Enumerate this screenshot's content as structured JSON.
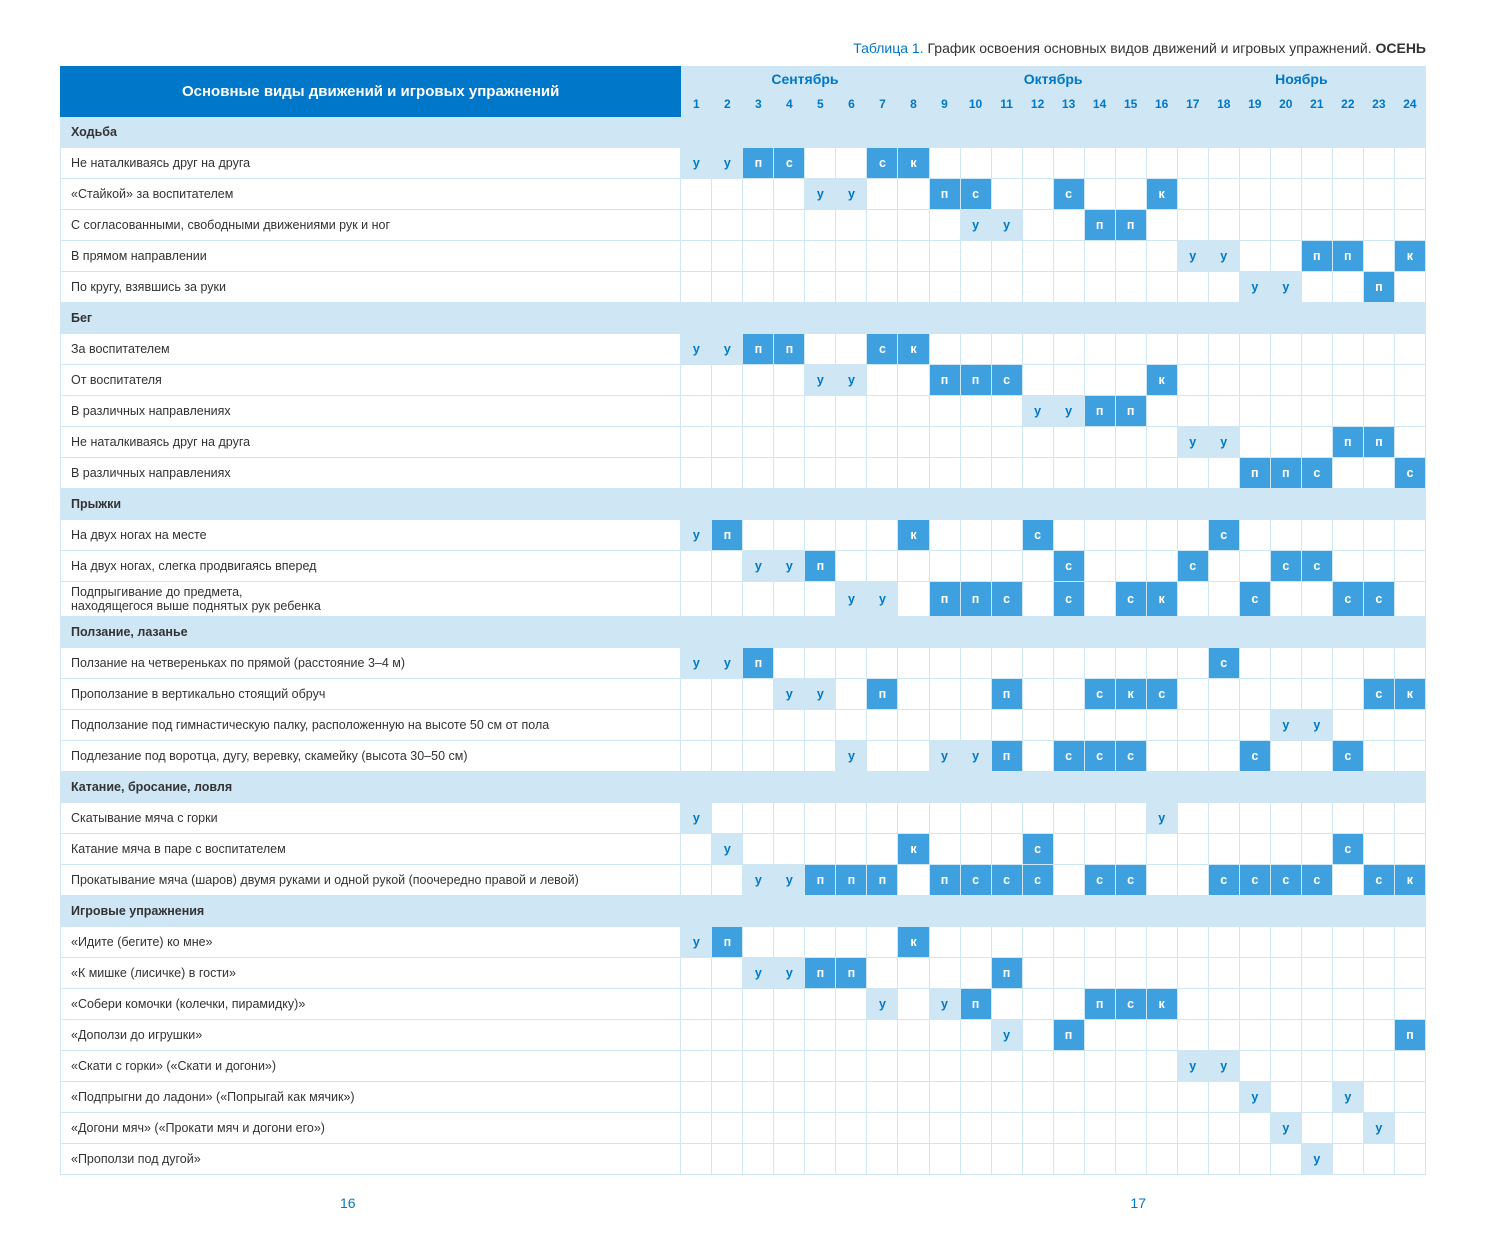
{
  "caption": {
    "table_label": "Таблица 1.",
    "title": "График освоения основных видов движений и игровых упражнений.",
    "season": "ОСЕНЬ"
  },
  "main_header": "Основные виды движений и игровых упражнений",
  "months": [
    {
      "name": "Сентябрь",
      "span": 8
    },
    {
      "name": "Октябрь",
      "span": 8
    },
    {
      "name": "Ноябрь",
      "span": 8
    }
  ],
  "column_numbers": [
    "1",
    "2",
    "3",
    "4",
    "5",
    "6",
    "7",
    "8",
    "9",
    "10",
    "11",
    "12",
    "13",
    "14",
    "15",
    "16",
    "17",
    "18",
    "19",
    "20",
    "21",
    "22",
    "23",
    "24"
  ],
  "rows": [
    {
      "type": "section",
      "label": "Ходьба"
    },
    {
      "type": "data",
      "label": "Не наталкиваясь друг на друга",
      "cells": {
        "1": [
          "у",
          "l"
        ],
        "2": [
          "у",
          "l"
        ],
        "3": [
          "п",
          "d"
        ],
        "4": [
          "с",
          "d"
        ],
        "7": [
          "с",
          "d"
        ],
        "8": [
          "к",
          "d"
        ]
      }
    },
    {
      "type": "data",
      "label": "«Стайкой» за воспитателем",
      "cells": {
        "5": [
          "у",
          "l"
        ],
        "6": [
          "у",
          "l"
        ],
        "9": [
          "п",
          "d"
        ],
        "10": [
          "с",
          "d"
        ],
        "13": [
          "с",
          "d"
        ],
        "16": [
          "к",
          "d"
        ]
      }
    },
    {
      "type": "data",
      "label": "С согласованными, свободными движениями рук и ног",
      "cells": {
        "10": [
          "у",
          "l"
        ],
        "11": [
          "у",
          "l"
        ],
        "14": [
          "п",
          "d"
        ],
        "15": [
          "п",
          "d"
        ]
      }
    },
    {
      "type": "data",
      "label": "В прямом направлении",
      "cells": {
        "17": [
          "у",
          "l"
        ],
        "18": [
          "у",
          "l"
        ],
        "21": [
          "п",
          "d"
        ],
        "22": [
          "п",
          "d"
        ],
        "24": [
          "к",
          "d"
        ]
      }
    },
    {
      "type": "data",
      "label": "По кругу, взявшись за руки",
      "cells": {
        "19": [
          "у",
          "l"
        ],
        "20": [
          "у",
          "l"
        ],
        "23": [
          "п",
          "d"
        ]
      }
    },
    {
      "type": "section",
      "label": "Бег"
    },
    {
      "type": "data",
      "label": "За воспитателем",
      "cells": {
        "1": [
          "у",
          "l"
        ],
        "2": [
          "у",
          "l"
        ],
        "3": [
          "п",
          "d"
        ],
        "4": [
          "п",
          "d"
        ],
        "7": [
          "с",
          "d"
        ],
        "8": [
          "к",
          "d"
        ]
      }
    },
    {
      "type": "data",
      "label": "От воспитателя",
      "cells": {
        "5": [
          "у",
          "l"
        ],
        "6": [
          "у",
          "l"
        ],
        "9": [
          "п",
          "d"
        ],
        "10": [
          "п",
          "d"
        ],
        "11": [
          "с",
          "d"
        ],
        "16": [
          "к",
          "d"
        ]
      }
    },
    {
      "type": "data",
      "label": "В различных направлениях",
      "cells": {
        "12": [
          "у",
          "l"
        ],
        "13": [
          "у",
          "l"
        ],
        "14": [
          "п",
          "d"
        ],
        "15": [
          "п",
          "d"
        ]
      }
    },
    {
      "type": "data",
      "label": "Не наталкиваясь друг на друга",
      "cells": {
        "17": [
          "у",
          "l"
        ],
        "18": [
          "у",
          "l"
        ],
        "22": [
          "п",
          "d"
        ],
        "23": [
          "п",
          "d"
        ]
      }
    },
    {
      "type": "data",
      "label": "В различных направлениях",
      "cells": {
        "19": [
          "п",
          "d"
        ],
        "20": [
          "п",
          "d"
        ],
        "21": [
          "с",
          "d"
        ],
        "24": [
          "с",
          "d"
        ]
      }
    },
    {
      "type": "section",
      "label": "Прыжки"
    },
    {
      "type": "data",
      "label": "На двух ногах на месте",
      "cells": {
        "1": [
          "у",
          "l"
        ],
        "2": [
          "п",
          "d"
        ],
        "8": [
          "к",
          "d"
        ],
        "12": [
          "с",
          "d"
        ],
        "18": [
          "с",
          "d"
        ]
      }
    },
    {
      "type": "data",
      "label": "На двух ногах, слегка продвигаясь вперед",
      "cells": {
        "3": [
          "у",
          "l"
        ],
        "4": [
          "у",
          "l"
        ],
        "5": [
          "п",
          "d"
        ],
        "13": [
          "с",
          "d"
        ],
        "17": [
          "с",
          "d"
        ],
        "20": [
          "с",
          "d"
        ],
        "21": [
          "с",
          "d"
        ]
      }
    },
    {
      "type": "data",
      "label": "Подпрыгивание до предмета,\nнаходящегося выше поднятых рук ребенка",
      "cells": {
        "6": [
          "у",
          "l"
        ],
        "7": [
          "у",
          "l"
        ],
        "9": [
          "п",
          "d"
        ],
        "10": [
          "п",
          "d"
        ],
        "11": [
          "с",
          "d"
        ],
        "13": [
          "с",
          "d"
        ],
        "15": [
          "с",
          "d"
        ],
        "16": [
          "к",
          "d"
        ],
        "19": [
          "с",
          "d"
        ],
        "22": [
          "с",
          "d"
        ],
        "23": [
          "с",
          "d"
        ]
      }
    },
    {
      "type": "section",
      "label": "Ползание, лазанье"
    },
    {
      "type": "data",
      "label": "Ползание на четвереньках по прямой (расстояние 3–4 м)",
      "cells": {
        "1": [
          "у",
          "l"
        ],
        "2": [
          "у",
          "l"
        ],
        "3": [
          "п",
          "d"
        ],
        "18": [
          "с",
          "d"
        ]
      }
    },
    {
      "type": "data",
      "label": "Проползание в вертикально стоящий обруч",
      "cells": {
        "4": [
          "у",
          "l"
        ],
        "5": [
          "у",
          "l"
        ],
        "7": [
          "п",
          "d"
        ],
        "11": [
          "п",
          "d"
        ],
        "14": [
          "с",
          "d"
        ],
        "15": [
          "к",
          "d"
        ],
        "16": [
          "с",
          "d"
        ],
        "23": [
          "с",
          "d"
        ],
        "24": [
          "к",
          "d"
        ]
      }
    },
    {
      "type": "data",
      "label": "Подползание под гимнастическую палку, расположенную на высоте 50 см от пола",
      "cells": {
        "20": [
          "у",
          "l"
        ],
        "21": [
          "у",
          "l"
        ]
      }
    },
    {
      "type": "data",
      "label": "Подлезание под воротца, дугу, веревку, скамейку (высота 30–50 см)",
      "cells": {
        "6": [
          "у",
          "l"
        ],
        "9": [
          "у",
          "l"
        ],
        "10": [
          "у",
          "l"
        ],
        "11": [
          "п",
          "d"
        ],
        "13": [
          "с",
          "d"
        ],
        "14": [
          "с",
          "d"
        ],
        "15": [
          "с",
          "d"
        ],
        "19": [
          "с",
          "d"
        ],
        "22": [
          "с",
          "d"
        ]
      }
    },
    {
      "type": "section",
      "label": "Катание, бросание, ловля"
    },
    {
      "type": "data",
      "label": "Скатывание мяча с горки",
      "cells": {
        "1": [
          "у",
          "l"
        ],
        "16": [
          "у",
          "l"
        ]
      }
    },
    {
      "type": "data",
      "label": "Катание мяча в паре с воспитателем",
      "cells": {
        "2": [
          "у",
          "l"
        ],
        "8": [
          "к",
          "d"
        ],
        "12": [
          "с",
          "d"
        ],
        "22": [
          "с",
          "d"
        ]
      }
    },
    {
      "type": "data",
      "label": "Прокатывание мяча (шаров) двумя руками и одной рукой (поочередно правой и левой)",
      "cells": {
        "3": [
          "у",
          "l"
        ],
        "4": [
          "у",
          "l"
        ],
        "5": [
          "п",
          "d"
        ],
        "6": [
          "п",
          "d"
        ],
        "7": [
          "п",
          "d"
        ],
        "9": [
          "п",
          "d"
        ],
        "10": [
          "с",
          "d"
        ],
        "11": [
          "с",
          "d"
        ],
        "12": [
          "с",
          "d"
        ],
        "14": [
          "с",
          "d"
        ],
        "15": [
          "с",
          "d"
        ],
        "18": [
          "с",
          "d"
        ],
        "19": [
          "с",
          "d"
        ],
        "20": [
          "с",
          "d"
        ],
        "21": [
          "с",
          "d"
        ],
        "23": [
          "с",
          "d"
        ],
        "24": [
          "к",
          "d"
        ]
      }
    },
    {
      "type": "section",
      "label": "Игровые упражнения"
    },
    {
      "type": "data",
      "label": "«Идите (бегите) ко мне»",
      "cells": {
        "1": [
          "у",
          "l"
        ],
        "2": [
          "п",
          "d"
        ],
        "8": [
          "к",
          "d"
        ]
      }
    },
    {
      "type": "data",
      "label": "«К мишке (лисичке) в гости»",
      "cells": {
        "3": [
          "у",
          "l"
        ],
        "4": [
          "у",
          "l"
        ],
        "5": [
          "п",
          "d"
        ],
        "6": [
          "п",
          "d"
        ],
        "11": [
          "п",
          "d"
        ]
      }
    },
    {
      "type": "data",
      "label": "«Собери комочки (колечки, пирамидку)»",
      "cells": {
        "7": [
          "у",
          "l"
        ],
        "9": [
          "у",
          "l"
        ],
        "10": [
          "п",
          "d"
        ],
        "14": [
          "п",
          "d"
        ],
        "15": [
          "с",
          "d"
        ],
        "16": [
          "к",
          "d"
        ]
      }
    },
    {
      "type": "data",
      "label": "«Доползи до игрушки»",
      "cells": {
        "11": [
          "у",
          "l"
        ],
        "13": [
          "п",
          "d"
        ],
        "24": [
          "п",
          "d"
        ]
      }
    },
    {
      "type": "data",
      "label": "«Скати с горки» («Скати и догони»)",
      "cells": {
        "17": [
          "у",
          "l"
        ],
        "18": [
          "у",
          "l"
        ]
      }
    },
    {
      "type": "data",
      "label": "«Подпрыгни до ладони» («Попрыгай как мячик»)",
      "cells": {
        "19": [
          "у",
          "l"
        ],
        "22": [
          "у",
          "l"
        ]
      }
    },
    {
      "type": "data",
      "label": "«Догони мяч» («Прокати мяч и догони его»)",
      "cells": {
        "20": [
          "у",
          "l"
        ],
        "23": [
          "у",
          "l"
        ]
      }
    },
    {
      "type": "data",
      "label": "«Проползи под дугой»",
      "cells": {
        "21": [
          "у",
          "l"
        ]
      }
    }
  ],
  "page_left": "16",
  "page_right": "17",
  "colors": {
    "dark_blue": "#0077c8",
    "light_blue": "#cfe6f5",
    "mid_blue": "#3ea0df"
  }
}
